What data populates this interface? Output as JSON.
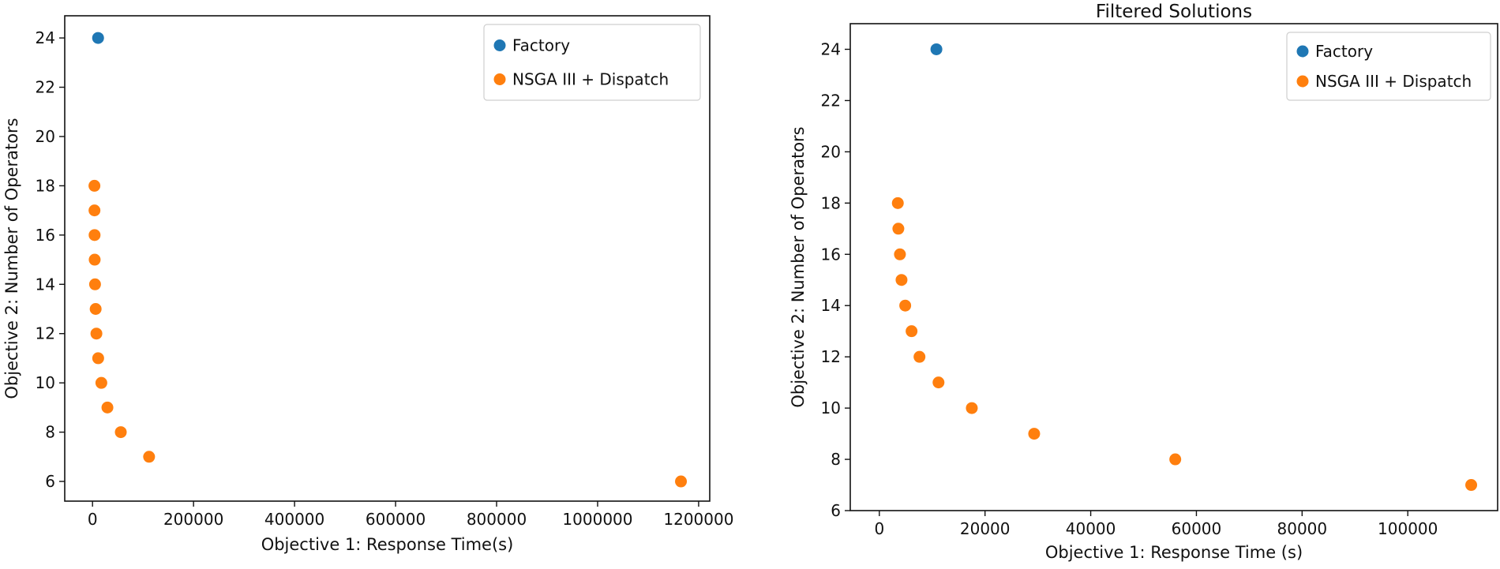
{
  "chart_data": [
    {
      "type": "scatter",
      "title": "",
      "xlabel": "Objective 1: Response Time(s)",
      "ylabel": "Objective 2: Number of Operators",
      "xlim": [
        -55000,
        1222000
      ],
      "ylim": [
        5.2,
        24.9
      ],
      "xticks": [
        0,
        200000,
        400000,
        600000,
        800000,
        1000000,
        1200000
      ],
      "xtick_labels": [
        "0",
        "200000",
        "400000",
        "600000",
        "800000",
        "1000000",
        "1200000"
      ],
      "yticks": [
        6,
        8,
        10,
        12,
        14,
        16,
        18,
        20,
        22,
        24
      ],
      "ytick_labels": [
        "6",
        "8",
        "10",
        "12",
        "14",
        "16",
        "18",
        "20",
        "22",
        "24"
      ],
      "legend": {
        "location": "top-right"
      },
      "series": [
        {
          "name": "Factory",
          "color": "#1f77b4",
          "points": [
            [
              11000,
              24
            ]
          ]
        },
        {
          "name": "NSGA III + Dispatch",
          "color": "#ff7f0e",
          "points": [
            [
              3800,
              18
            ],
            [
              3900,
              17
            ],
            [
              4100,
              16
            ],
            [
              4300,
              15
            ],
            [
              5000,
              14
            ],
            [
              6200,
              13
            ],
            [
              7700,
              12
            ],
            [
              11200,
              11
            ],
            [
              17500,
              10
            ],
            [
              29500,
              9
            ],
            [
              56000,
              8
            ],
            [
              112000,
              7
            ],
            [
              1165000,
              6
            ]
          ]
        }
      ]
    },
    {
      "type": "scatter",
      "title": "Filtered Solutions",
      "xlabel": "Objective 1: Response Time (s)",
      "ylabel": "Objective 2: Number of Operators",
      "xlim": [
        -5500,
        117000
      ],
      "ylim": [
        6,
        25
      ],
      "xticks": [
        0,
        20000,
        40000,
        60000,
        80000,
        100000
      ],
      "xtick_labels": [
        "0",
        "20000",
        "40000",
        "60000",
        "80000",
        "100000"
      ],
      "yticks": [
        6,
        8,
        10,
        12,
        14,
        16,
        18,
        20,
        22,
        24
      ],
      "ytick_labels": [
        "6",
        "8",
        "10",
        "12",
        "14",
        "16",
        "18",
        "20",
        "22",
        "24"
      ],
      "legend": {
        "location": "top-right"
      },
      "series": [
        {
          "name": "Factory",
          "color": "#1f77b4",
          "points": [
            [
              10800,
              24
            ]
          ]
        },
        {
          "name": "NSGA III + Dispatch",
          "color": "#ff7f0e",
          "points": [
            [
              3500,
              18
            ],
            [
              3600,
              17
            ],
            [
              3900,
              16
            ],
            [
              4200,
              15
            ],
            [
              4900,
              14
            ],
            [
              6100,
              13
            ],
            [
              7600,
              12
            ],
            [
              11200,
              11
            ],
            [
              17500,
              10
            ],
            [
              29300,
              9
            ],
            [
              56000,
              8
            ],
            [
              112000,
              7
            ]
          ]
        }
      ]
    }
  ]
}
